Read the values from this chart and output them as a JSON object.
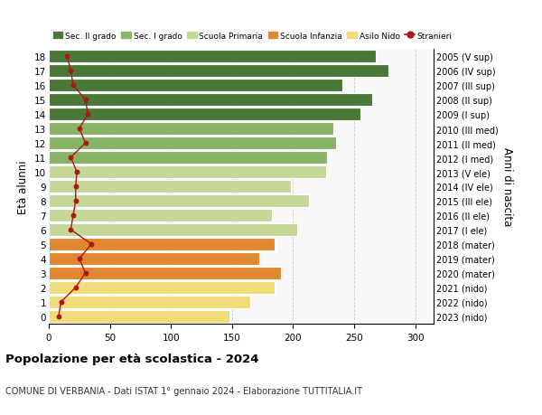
{
  "ages": [
    0,
    1,
    2,
    3,
    4,
    5,
    6,
    7,
    8,
    9,
    10,
    11,
    12,
    13,
    14,
    15,
    16,
    17,
    18
  ],
  "anni_nascita": [
    "2023 (nido)",
    "2022 (nido)",
    "2021 (nido)",
    "2020 (mater)",
    "2019 (mater)",
    "2018 (mater)",
    "2017 (I ele)",
    "2016 (II ele)",
    "2015 (III ele)",
    "2014 (IV ele)",
    "2013 (V ele)",
    "2012 (I med)",
    "2011 (II med)",
    "2010 (III med)",
    "2009 (I sup)",
    "2008 (II sup)",
    "2007 (III sup)",
    "2006 (IV sup)",
    "2005 (V sup)"
  ],
  "bar_values": [
    148,
    165,
    185,
    190,
    172,
    185,
    203,
    183,
    213,
    198,
    227,
    228,
    235,
    233,
    255,
    265,
    240,
    278,
    268
  ],
  "stranieri": [
    8,
    10,
    22,
    30,
    25,
    35,
    18,
    20,
    22,
    22,
    23,
    18,
    30,
    25,
    32,
    30,
    20,
    18,
    15
  ],
  "bar_colors": [
    "#f0dc78",
    "#f0dc78",
    "#f0dc78",
    "#e08830",
    "#e08830",
    "#e08830",
    "#c5d898",
    "#c5d898",
    "#c5d898",
    "#c5d898",
    "#c5d898",
    "#88b468",
    "#88b468",
    "#88b468",
    "#4a7838",
    "#4a7838",
    "#4a7838",
    "#4a7838",
    "#4a7838"
  ],
  "legend_labels": [
    "Sec. II grado",
    "Sec. I grado",
    "Scuola Primaria",
    "Scuola Infanzia",
    "Asilo Nido",
    "Stranieri"
  ],
  "legend_colors": [
    "#4a7838",
    "#88b468",
    "#c5d898",
    "#e08830",
    "#f0dc78",
    "#aa1818"
  ],
  "ylabel": "Età alunni",
  "ylabel2": "Anni di nascita",
  "title": "Popolazione per età scolastica - 2024",
  "subtitle": "COMUNE DI VERBANIA - Dati ISTAT 1° gennaio 2024 - Elaborazione TUTTITALIA.IT",
  "xlim": [
    0,
    315
  ],
  "xticks": [
    0,
    50,
    100,
    150,
    200,
    250,
    300
  ],
  "stranieri_color": "#aa1818",
  "grid_color": "#cccccc",
  "bg_color": "#f8f8f8"
}
